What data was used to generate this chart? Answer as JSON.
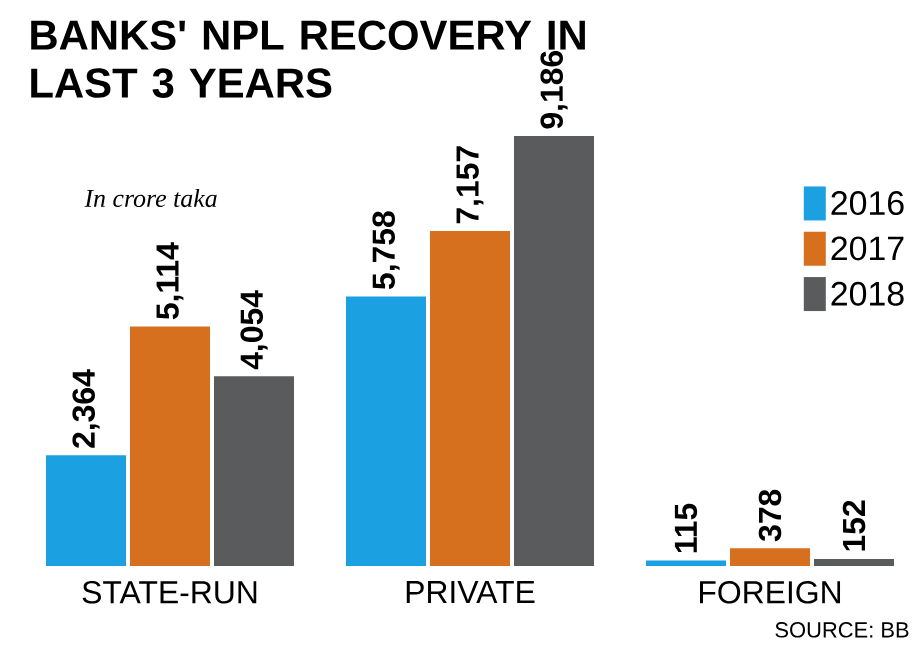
{
  "chart_data": {
    "type": "bar",
    "title": "BANKS' NPL RECOVERY IN LAST 3 YEARS",
    "subtitle": "In crore taka",
    "categories": [
      "STATE-RUN",
      "PRIVATE",
      "FOREIGN"
    ],
    "series": [
      {
        "name": "2016",
        "color": "#1ba1e2",
        "values": [
          2364,
          5758,
          115
        ],
        "value_labels": [
          "2,364",
          "5,758",
          "115"
        ]
      },
      {
        "name": "2017",
        "color": "#d7701e",
        "values": [
          5114,
          7157,
          378
        ],
        "value_labels": [
          "5,114",
          "7,157",
          "378"
        ]
      },
      {
        "name": "2018",
        "color": "#5a5b5d",
        "values": [
          4054,
          9186,
          152
        ],
        "value_labels": [
          "4,054",
          "9,186",
          "152"
        ]
      }
    ],
    "legend": "top right",
    "annotations": [
      "SOURCE: BB"
    ]
  }
}
